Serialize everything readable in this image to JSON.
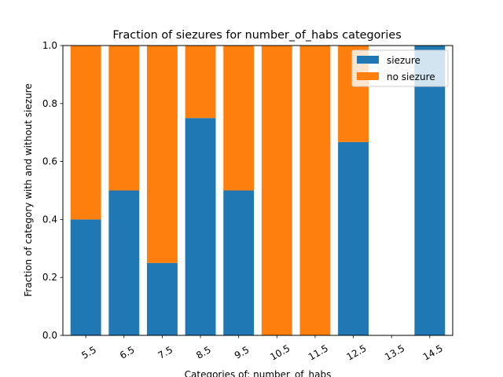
{
  "chart_data": {
    "type": "bar",
    "stacked": true,
    "title": "Fraction of siezures for number_of_habs categories",
    "xlabel": "Categories of: number_of_habs",
    "ylabel": "Fraction of category with and without siezure",
    "categories": [
      "5.5",
      "6.5",
      "7.5",
      "8.5",
      "9.5",
      "10.5",
      "11.5",
      "12.5",
      "13.5",
      "14.5"
    ],
    "series": [
      {
        "name": "siezure",
        "color": "#1f77b4",
        "values": [
          0.4,
          0.5,
          0.25,
          0.75,
          0.5,
          0.0,
          0.0,
          0.667,
          0.0,
          1.0
        ]
      },
      {
        "name": "no siezure",
        "color": "#ff7f0e",
        "values": [
          0.6,
          0.5,
          0.75,
          0.25,
          0.5,
          1.0,
          1.0,
          0.333,
          0.0,
          0.0
        ]
      }
    ],
    "ylim": [
      0,
      1
    ],
    "yticks": [
      "0.0",
      "0.2",
      "0.4",
      "0.6",
      "0.8",
      "1.0"
    ],
    "xtick_rotation": "30 degrees",
    "grid": false,
    "legend_position": "top-right"
  }
}
